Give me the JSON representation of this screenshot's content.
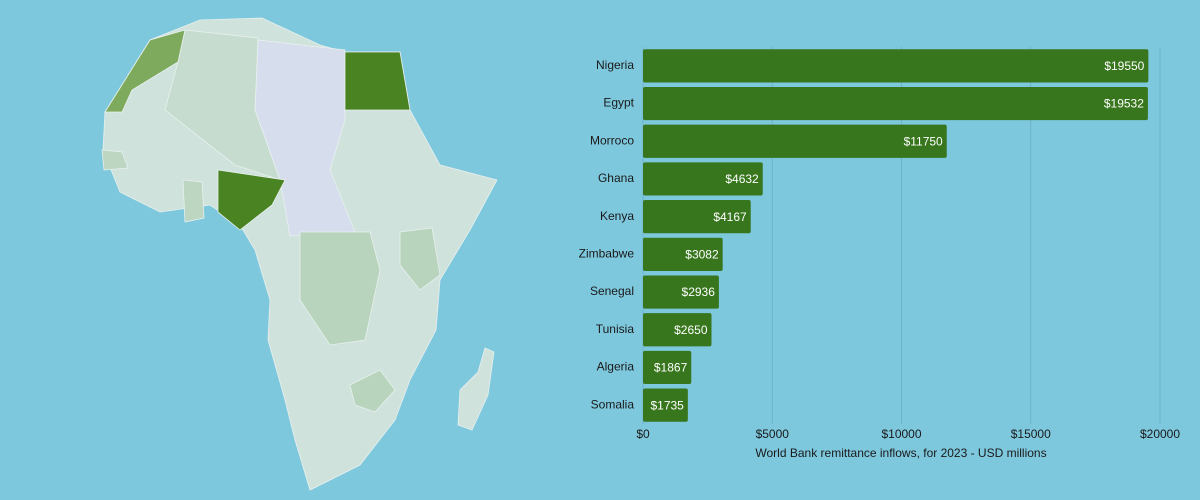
{
  "chart_data": {
    "type": "bar",
    "orientation": "horizontal",
    "x_label": "World Bank remittance inflows, for 2023 - USD millions",
    "categories": [
      "Nigeria",
      "Egypt",
      "Morroco",
      "Ghana",
      "Kenya",
      "Zimbabwe",
      "Senegal",
      "Tunisia",
      "Algeria",
      "Somalia"
    ],
    "values": [
      19550,
      19532,
      11750,
      4632,
      4167,
      3082,
      2936,
      2650,
      1867,
      1735
    ],
    "value_labels": [
      "$19550",
      "$19532",
      "$11750",
      "$4632",
      "$4167",
      "$3082",
      "$2936",
      "$2650",
      "$1867",
      "$1735"
    ],
    "color": "#37761c",
    "xlim": [
      0,
      20000
    ],
    "xticks": [
      {
        "value": 0,
        "label": "$0"
      },
      {
        "value": 5000,
        "label": "$5000"
      },
      {
        "value": 10000,
        "label": "$10000"
      },
      {
        "value": 15000,
        "label": "$15000"
      },
      {
        "value": 20000,
        "label": "$20000"
      }
    ],
    "grid": true
  }
}
